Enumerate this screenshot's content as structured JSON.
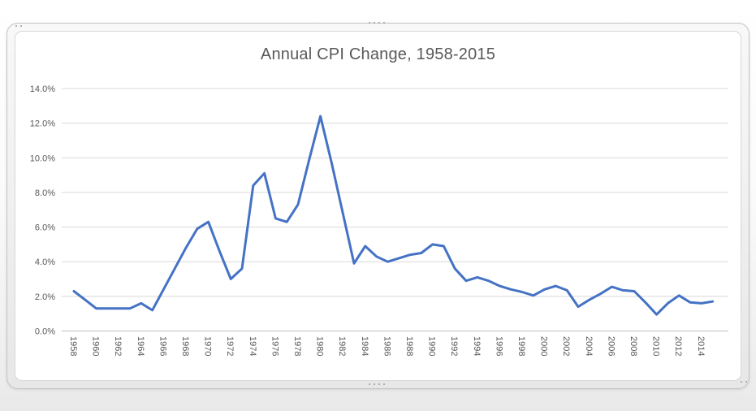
{
  "chart_data": {
    "type": "line",
    "title": "Annual CPI Change, 1958-2015",
    "xlabel": "",
    "ylabel": "",
    "legend": "none",
    "grid": true,
    "ylim": [
      0,
      14
    ],
    "y_tick_labels": [
      "0.0%",
      "2.0%",
      "4.0%",
      "6.0%",
      "8.0%",
      "10.0%",
      "12.0%",
      "14.0%"
    ],
    "x_tick_labels": [
      "1958",
      "1960",
      "1962",
      "1964",
      "1966",
      "1968",
      "1970",
      "1972",
      "1974",
      "1976",
      "1978",
      "1980",
      "1982",
      "1984",
      "1986",
      "1988",
      "1990",
      "1992",
      "1994",
      "1996",
      "1998",
      "2000",
      "2002",
      "2004",
      "2006",
      "2008",
      "2010",
      "2012",
      "2014"
    ],
    "x": [
      1958,
      1959,
      1960,
      1961,
      1962,
      1963,
      1964,
      1965,
      1966,
      1967,
      1968,
      1969,
      1970,
      1971,
      1972,
      1973,
      1974,
      1975,
      1976,
      1977,
      1978,
      1979,
      1980,
      1981,
      1982,
      1983,
      1984,
      1985,
      1986,
      1987,
      1988,
      1989,
      1990,
      1991,
      1992,
      1993,
      1994,
      1995,
      1996,
      1997,
      1998,
      1999,
      2000,
      2001,
      2002,
      2003,
      2004,
      2005,
      2006,
      2007,
      2008,
      2009,
      2010,
      2011,
      2012,
      2013,
      2014,
      2015
    ],
    "values": [
      2.3,
      1.8,
      1.3,
      1.3,
      1.3,
      1.3,
      1.6,
      1.2,
      2.4,
      3.6,
      4.8,
      5.9,
      6.3,
      4.6,
      3.0,
      3.6,
      8.4,
      9.1,
      6.5,
      6.3,
      7.3,
      9.9,
      12.4,
      9.7,
      6.8,
      3.9,
      4.9,
      4.3,
      4.0,
      4.2,
      4.4,
      4.5,
      5.0,
      4.9,
      3.6,
      2.9,
      3.1,
      2.9,
      2.6,
      2.4,
      2.25,
      2.05,
      2.4,
      2.6,
      2.35,
      1.4,
      1.8,
      2.15,
      2.55,
      2.35,
      2.3,
      1.65,
      0.95,
      1.6,
      2.05,
      1.65,
      1.6,
      1.7
    ],
    "colors": {
      "line": "#4472c4",
      "grid": "#d9d9d9",
      "axis": "#bfbfbf",
      "text": "#595959"
    }
  }
}
